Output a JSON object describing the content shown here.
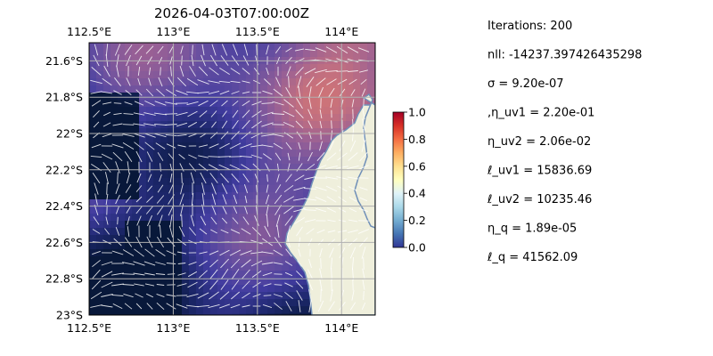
{
  "title": "2026-04-03T07:00:00Z",
  "map": {
    "lon_min": 112.5,
    "lon_max": 114.2,
    "lat_min": -23.0,
    "lat_max": -21.5,
    "lon_ticks": [
      {
        "value": 112.5,
        "label": "112.5°E"
      },
      {
        "value": 113.0,
        "label": "113°E"
      },
      {
        "value": 113.5,
        "label": "113.5°E"
      },
      {
        "value": 114.0,
        "label": "114°E"
      }
    ],
    "lat_ticks": [
      {
        "value": -21.6,
        "label": "21.6°S"
      },
      {
        "value": -21.8,
        "label": "21.8°S"
      },
      {
        "value": -22.0,
        "label": "22°S"
      },
      {
        "value": -22.2,
        "label": "22.2°S"
      },
      {
        "value": -22.4,
        "label": "22.4°S"
      },
      {
        "value": -22.6,
        "label": "22.6°S"
      },
      {
        "value": -22.8,
        "label": "22.8°S"
      },
      {
        "value": -23.0,
        "label": "23°S"
      }
    ],
    "colors": {
      "ocean_background": "#9fb8de",
      "land": "#efefdc",
      "coastline": "#6f8fb8",
      "gridline": "#b0b0b0",
      "arrow": "#ffffff"
    }
  },
  "colorbar": {
    "min": 0.0,
    "max": 1.0,
    "colormap": "RdYlBu_r",
    "ticks": [
      {
        "value": 0.0,
        "label": "0.0"
      },
      {
        "value": 0.2,
        "label": "0.2"
      },
      {
        "value": 0.4,
        "label": "0.4"
      },
      {
        "value": 0.6,
        "label": "0.6"
      },
      {
        "value": 0.8,
        "label": "0.8"
      },
      {
        "value": 1.0,
        "label": "1.0"
      }
    ]
  },
  "stats": [
    "Iterations: 200",
    "nll: -14237.397426435298",
    "σ = 9.20e-07",
    ",η_uv1 = 2.20e-01",
    "η_uv2 = 2.06e-02",
    "ℓ_uv1 = 15836.69",
    "ℓ_uv2 = 10235.46",
    "η_q = 1.89e-05",
    "ℓ_q = 41562.09"
  ]
}
